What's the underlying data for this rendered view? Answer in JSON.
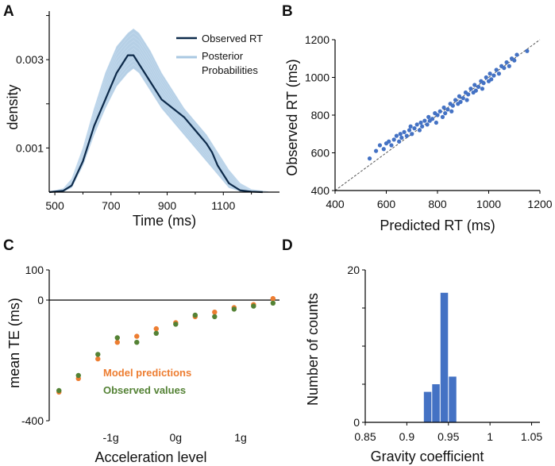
{
  "chart_data": [
    {
      "panel": "A",
      "type": "line",
      "xlabel": "Time (ms)",
      "ylabel": "density",
      "xticks": [
        500,
        700,
        900,
        1100
      ],
      "yticks": [
        0.001,
        0.003
      ],
      "xlim": [
        480,
        1300
      ],
      "ylim": [
        0,
        0.0041
      ],
      "legend": [
        "Observed RT",
        "Posterior Probabilities"
      ],
      "legend_position": "top-right",
      "series": [
        {
          "name": "Observed RT",
          "color": "#0d2a4a",
          "x": [
            480,
            530,
            560,
            600,
            640,
            680,
            720,
            760,
            780,
            800,
            840,
            880,
            920,
            960,
            1000,
            1040,
            1060,
            1080,
            1120,
            1160,
            1200,
            1240
          ],
          "y": [
            0,
            3e-05,
            0.00015,
            0.0007,
            0.0015,
            0.0021,
            0.0027,
            0.0031,
            0.0031,
            0.0029,
            0.0025,
            0.0021,
            0.0019,
            0.0017,
            0.0014,
            0.0011,
            0.0009,
            0.0006,
            0.0002,
            4e-05,
            1e-05,
            0
          ]
        },
        {
          "name": "Posterior Probabilities",
          "color": "#a9c8e2",
          "x": [
            480,
            530,
            560,
            600,
            640,
            680,
            720,
            760,
            780,
            800,
            840,
            880,
            920,
            960,
            1000,
            1040,
            1080,
            1120,
            1160,
            1200,
            1260
          ],
          "y_low": [
            0,
            1e-05,
            0.0001,
            0.0006,
            0.0013,
            0.0019,
            0.0024,
            0.0027,
            0.0028,
            0.0027,
            0.0023,
            0.0019,
            0.0016,
            0.0013,
            0.001,
            0.0007,
            0.0004,
            0.0001,
            2e-05,
            0,
            0
          ],
          "y_high": [
            1e-05,
            8e-05,
            0.0003,
            0.001,
            0.0019,
            0.0027,
            0.0033,
            0.0036,
            0.0037,
            0.0036,
            0.0032,
            0.0027,
            0.0023,
            0.0019,
            0.0016,
            0.0013,
            0.0009,
            0.0005,
            0.0002,
            6e-05,
            1e-05
          ]
        }
      ]
    },
    {
      "panel": "B",
      "type": "scatter",
      "xlabel": "Predicted RT (ms)",
      "ylabel": "Observed RT (ms)",
      "xticks": [
        400,
        600,
        800,
        1000,
        1200
      ],
      "yticks": [
        400,
        600,
        800,
        1000,
        1200
      ],
      "xlim": [
        400,
        1200
      ],
      "ylim": [
        400,
        1200
      ],
      "color": "#4472c4",
      "reference_line": "identity (dashed)",
      "x": [
        535,
        560,
        575,
        590,
        600,
        610,
        620,
        630,
        640,
        650,
        655,
        660,
        670,
        680,
        690,
        695,
        700,
        710,
        720,
        730,
        735,
        740,
        750,
        760,
        765,
        770,
        780,
        790,
        795,
        800,
        810,
        820,
        825,
        830,
        840,
        850,
        855,
        860,
        870,
        880,
        885,
        890,
        900,
        910,
        915,
        920,
        930,
        940,
        945,
        950,
        960,
        970,
        975,
        980,
        990,
        1000,
        1005,
        1010,
        1020,
        1030,
        1040,
        1050,
        1060,
        1070,
        1080,
        1090,
        1100,
        1110,
        1150
      ],
      "y": [
        570,
        610,
        640,
        620,
        650,
        660,
        640,
        670,
        690,
        660,
        700,
        680,
        710,
        690,
        720,
        740,
        700,
        730,
        750,
        720,
        760,
        740,
        770,
        750,
        790,
        770,
        780,
        810,
        760,
        800,
        820,
        790,
        840,
        810,
        830,
        860,
        820,
        850,
        880,
        860,
        900,
        870,
        890,
        920,
        880,
        910,
        940,
        920,
        960,
        930,
        950,
        980,
        940,
        970,
        1000,
        980,
        1020,
        990,
        1010,
        1040,
        1020,
        1060,
        1050,
        1080,
        1060,
        1100,
        1090,
        1120,
        1140
      ]
    },
    {
      "panel": "C",
      "type": "scatter",
      "xlabel": "Acceleration level",
      "ylabel": "mean TE (ms)",
      "xticks": [
        "-1g",
        "0g",
        "1g"
      ],
      "yticks": [
        100,
        0,
        -400
      ],
      "ylim": [
        -400,
        100
      ],
      "xlim": [
        -1.95,
        1.6
      ],
      "x": [
        -1.8,
        -1.5,
        -1.2,
        -0.9,
        -0.6,
        -0.3,
        0,
        0.3,
        0.6,
        0.9,
        1.2,
        1.5
      ],
      "series": [
        {
          "name": "Model predictions",
          "color": "#ed7d31",
          "y": [
            -305,
            -260,
            -195,
            -140,
            -120,
            -95,
            -75,
            -55,
            -40,
            -25,
            -15,
            5
          ]
        },
        {
          "name": "Observed values",
          "color": "#548235",
          "y": [
            -300,
            -250,
            -180,
            -125,
            -140,
            -110,
            -80,
            -50,
            -55,
            -30,
            -20,
            -10
          ]
        }
      ]
    },
    {
      "panel": "D",
      "type": "bar",
      "xlabel": "Gravity coefficient",
      "ylabel": "Number of counts",
      "xticks": [
        0.85,
        0.9,
        0.95,
        1.0,
        1.05
      ],
      "yticks": [
        0,
        20
      ],
      "xlim": [
        0.85,
        1.06
      ],
      "ylim": [
        0,
        20
      ],
      "color": "#4472c4",
      "bin_width": 0.01,
      "bin_starts": [
        0.92,
        0.93,
        0.94,
        0.95
      ],
      "values": [
        4,
        5,
        17,
        6
      ]
    }
  ]
}
